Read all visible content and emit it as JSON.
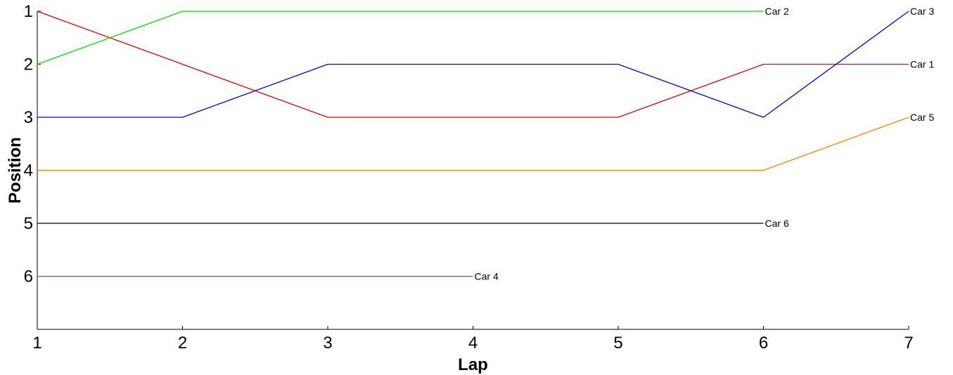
{
  "chart_data": {
    "type": "line",
    "xlabel": "Lap",
    "ylabel": "Position",
    "x_ticks": [
      1,
      2,
      3,
      4,
      5,
      6,
      7
    ],
    "y_ticks": [
      1,
      2,
      3,
      4,
      5,
      6
    ],
    "xlim": [
      1,
      7
    ],
    "ylim": [
      1,
      7
    ],
    "y_inverted": true,
    "grid": false,
    "legend": "none",
    "series": [
      {
        "name": "Car 1",
        "color": "#e00000",
        "x": [
          1,
          2,
          3,
          4,
          5,
          6,
          7
        ],
        "y": [
          1,
          2,
          3,
          3,
          3,
          2,
          2
        ]
      },
      {
        "name": "Car 2",
        "color": "#00e000",
        "x": [
          1,
          2,
          3,
          4,
          5,
          6
        ],
        "y": [
          2,
          1,
          1,
          1,
          1,
          1
        ]
      },
      {
        "name": "Car 3",
        "color": "#0000e0",
        "x": [
          1,
          2,
          3,
          4,
          5,
          6,
          7
        ],
        "y": [
          3,
          3,
          2,
          2,
          2,
          3,
          1
        ]
      },
      {
        "name": "Car 4",
        "color": "#e000e0",
        "x": [
          1,
          2,
          3,
          4
        ],
        "y": [
          6,
          6,
          6,
          6
        ]
      },
      {
        "name": "Car 5",
        "color": "#ff8000",
        "x": [
          1,
          2,
          3,
          4,
          5,
          6,
          7
        ],
        "y": [
          4,
          4,
          4,
          4,
          4,
          4,
          3
        ]
      },
      {
        "name": "Car 6",
        "color": "#000000",
        "x": [
          1,
          2,
          3,
          4,
          5,
          6
        ],
        "y": [
          5,
          5,
          5,
          5,
          5,
          5
        ]
      }
    ]
  }
}
